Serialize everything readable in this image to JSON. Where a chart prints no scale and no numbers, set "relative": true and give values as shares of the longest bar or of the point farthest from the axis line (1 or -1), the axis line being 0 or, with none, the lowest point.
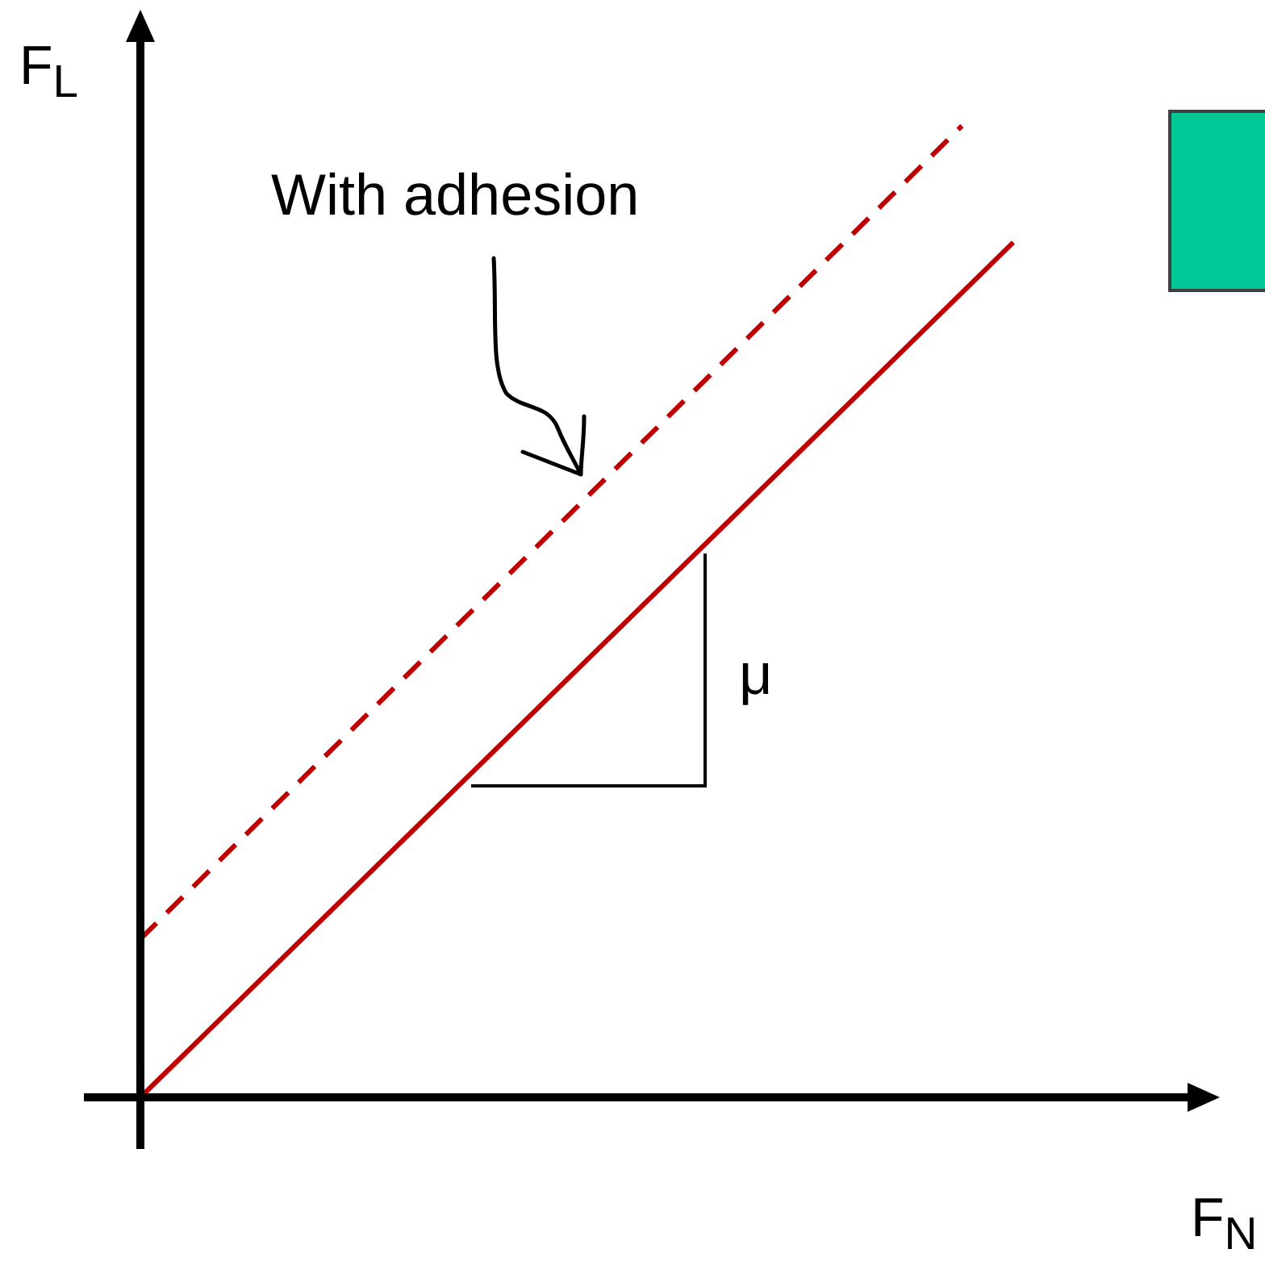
{
  "chart_data": {
    "type": "line",
    "relative": true,
    "xlabel": "F$_{N}$",
    "ylabel": "F$_{L}$",
    "annotations": [
      "With adhesion",
      "μ"
    ],
    "legend": false,
    "marker": "none",
    "categories": [
      null,
      null,
      null,
      null,
      null,
      null,
      null,
      null,
      null,
      null,
      null,
      null,
      null,
      null,
      null,
      null,
      null,
      null
    ],
    "series": [
      {
        "color": "#c00000",
        "line_style": "solid",
        "values": [
          0,
          null,
          null,
          null,
          null,
          null,
          null,
          null,
          null,
          null,
          null,
          null,
          null,
          null,
          null,
          null,
          null,
          0.88
        ]
      },
      {
        "color": "#c00000",
        "line_style": "dashed",
        "values": [
          0.163,
          null,
          null,
          null,
          null,
          null,
          null,
          null,
          null,
          null,
          null,
          null,
          null,
          null,
          null,
          null,
          1,
          null
        ]
      }
    ]
  }
}
